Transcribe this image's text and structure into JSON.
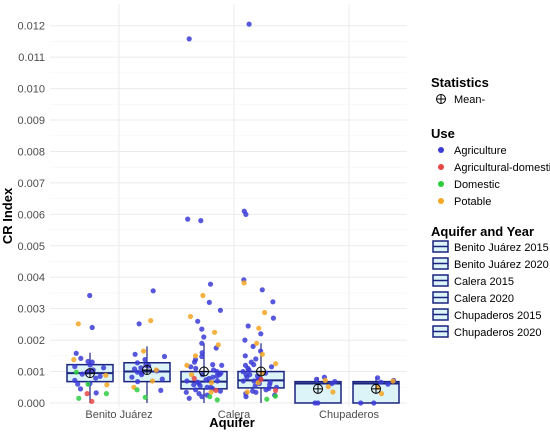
{
  "chart_data": {
    "type": "boxplot",
    "xlabel": "Aquifer",
    "ylabel": "CR Index",
    "ylim": [
      0,
      0.0125
    ],
    "yticks": [
      "0.000",
      "0.001",
      "0.002",
      "0.003",
      "0.004",
      "0.005",
      "0.006",
      "0.007",
      "0.008",
      "0.009",
      "0.010",
      "0.011",
      "0.012"
    ],
    "ytick_values": [
      0,
      0.001,
      0.002,
      0.003,
      0.004,
      0.005,
      0.006,
      0.007,
      0.008,
      0.009,
      0.01,
      0.011,
      0.012
    ],
    "categories": [
      "Benito Juárez",
      "Calera",
      "Chupaderos"
    ],
    "grid": true,
    "legend_position": "right",
    "colors": {
      "Agriculture": "#3b3bd6",
      "Agricultural-domestic": "#e84545",
      "Domestic": "#2ecc40",
      "Potable": "#f5a623",
      "box_stroke": "#1a237e",
      "box_fill": "#bfe9f2"
    },
    "boxes": [
      {
        "name": "Benito Juárez 2015",
        "category": "Benito Juárez",
        "q1": 0.00068,
        "median": 0.00095,
        "q3": 0.00122,
        "whisker_low": 0.0,
        "whisker_high": 0.0016,
        "mean": 0.00095
      },
      {
        "name": "Benito Juárez 2020",
        "category": "Benito Juárez",
        "q1": 0.00068,
        "median": 0.001,
        "q3": 0.00128,
        "whisker_low": 0.0,
        "whisker_high": 0.0018,
        "mean": 0.00105
      },
      {
        "name": "Calera 2015",
        "category": "Calera",
        "q1": 0.00045,
        "median": 0.00068,
        "q3": 0.001,
        "whisker_low": 0.0,
        "whisker_high": 0.0019,
        "mean": 0.001
      },
      {
        "name": "Calera 2020",
        "category": "Calera",
        "q1": 0.00048,
        "median": 0.00072,
        "q3": 0.001,
        "whisker_low": 0.0,
        "whisker_high": 0.0019,
        "mean": 0.001
      },
      {
        "name": "Chupaderos 2015",
        "category": "Chupaderos",
        "q1": 0.0,
        "median": 0.00062,
        "q3": 0.00068,
        "whisker_low": 0.0,
        "whisker_high": 0.00082,
        "mean": 0.00045
      },
      {
        "name": "Chupaderos 2020",
        "category": "Chupaderos",
        "q1": 0.0,
        "median": 0.00062,
        "q3": 0.00068,
        "whisker_low": 0.0,
        "whisker_high": 0.00082,
        "mean": 0.00045
      }
    ],
    "points": [
      {
        "box": 0,
        "use": "Agriculture",
        "values": [
          0.00342,
          0.0024,
          0.00158,
          0.00142,
          0.00132,
          0.00121,
          0.00116,
          0.00112,
          0.00105,
          0.00098,
          0.00092,
          0.00085,
          0.00079,
          0.00072,
          0.00062,
          0.00045,
          0.00032,
          0.0006,
          0.0013,
          0.001
        ]
      },
      {
        "box": 0,
        "use": "Potable",
        "values": [
          0.00252,
          0.00138,
          0.00088,
          0.00058
        ]
      },
      {
        "box": 0,
        "use": "Domestic",
        "values": [
          0.00098,
          0.0006,
          0.0003,
          0.00015
        ]
      },
      {
        "box": 0,
        "use": "Agricultural-domestic",
        "values": [
          0.0003,
          5e-05
        ]
      },
      {
        "box": 1,
        "use": "Agriculture",
        "values": [
          0.00357,
          0.00252,
          0.00155,
          0.00148,
          0.00138,
          0.00128,
          0.00118,
          0.00112,
          0.00108,
          0.00102,
          0.00096,
          0.0009,
          0.00082,
          0.00076,
          0.00068,
          0.0004,
          0.0012,
          0.00098
        ]
      },
      {
        "box": 1,
        "use": "Potable",
        "values": [
          0.00262,
          0.00165,
          0.00105,
          0.0007,
          0.0005
        ]
      },
      {
        "box": 1,
        "use": "Domestic",
        "values": [
          0.00042,
          0.00018
        ]
      },
      {
        "box": 2,
        "use": "Agriculture",
        "values": [
          0.01158,
          0.00585,
          0.0058,
          0.00378,
          0.0032,
          0.00295,
          0.0026,
          0.00235,
          0.0021,
          0.0019,
          0.00175,
          0.0016,
          0.00148,
          0.00138,
          0.0013,
          0.00122,
          0.00115,
          0.0011,
          0.00105,
          0.001,
          0.00095,
          0.0009,
          0.00086,
          0.00082,
          0.00078,
          0.00074,
          0.0007,
          0.00066,
          0.00062,
          0.00058,
          0.00054,
          0.0005,
          0.00046,
          0.00042,
          0.00038,
          0.00034,
          0.0003,
          0.00025,
          0.0002,
          0.00015,
          0.0012,
          0.0009,
          0.0007,
          0.0005
        ]
      },
      {
        "box": 2,
        "use": "Potable",
        "values": [
          0.00342,
          0.00275,
          0.00225,
          0.00185,
          0.0015,
          0.0012,
          0.0009,
          0.00065,
          0.00035
        ]
      },
      {
        "box": 2,
        "use": "Domestic",
        "values": [
          0.0002,
          0.0001
        ]
      },
      {
        "box": 2,
        "use": "Agricultural-domestic",
        "values": [
          0.00078,
          0.0004
        ]
      },
      {
        "box": 3,
        "use": "Agriculture",
        "values": [
          0.01205,
          0.0061,
          0.006,
          0.00392,
          0.0036,
          0.00322,
          0.0027,
          0.00245,
          0.0022,
          0.002,
          0.0018,
          0.00165,
          0.0015,
          0.0014,
          0.0013,
          0.00122,
          0.00115,
          0.0011,
          0.00105,
          0.001,
          0.00095,
          0.0009,
          0.00086,
          0.00082,
          0.00078,
          0.00074,
          0.0007,
          0.00066,
          0.00062,
          0.00058,
          0.00054,
          0.0005,
          0.00046,
          0.00042,
          0.00038,
          0.00034,
          0.0003,
          0.00025,
          0.0002,
          0.0012,
          0.0009,
          0.0007
        ]
      },
      {
        "box": 3,
        "use": "Potable",
        "values": [
          0.00382,
          0.00288,
          0.00238,
          0.0019,
          0.00155,
          0.00125,
          0.00095,
          0.00065,
          0.00035
        ]
      },
      {
        "box": 3,
        "use": "Domestic",
        "values": [
          0.00022,
          0.00012
        ]
      },
      {
        "box": 3,
        "use": "Agricultural-domestic",
        "values": [
          0.00075,
          0.0004
        ]
      },
      {
        "box": 4,
        "use": "Agriculture",
        "values": [
          0.00082,
          0.00075,
          0.00068,
          0.00062,
          0.0,
          0.0
        ]
      },
      {
        "box": 4,
        "use": "Potable",
        "values": [
          0.00072,
          0.00052,
          0.00035
        ]
      },
      {
        "box": 5,
        "use": "Agriculture",
        "values": [
          0.0008,
          0.00072,
          0.00066,
          0.0006,
          0.0,
          0.0
        ]
      },
      {
        "box": 5,
        "use": "Potable",
        "values": [
          0.0007,
          0.0005,
          0.0003
        ]
      }
    ],
    "legend": {
      "statistics_title": "Statistics",
      "statistics_items": [
        "Mean-"
      ],
      "use_title": "Use",
      "use_items": [
        "Agriculture",
        "Agricultural-domestic",
        "Domestic",
        "Potable"
      ],
      "aquifer_title": "Aquifer and Year",
      "aquifer_items": [
        "Benito Juárez 2015",
        "Benito Juárez 2020",
        "Calera 2015",
        "Calera 2020",
        "Chupaderos 2015",
        "Chupaderos 2020"
      ]
    }
  }
}
